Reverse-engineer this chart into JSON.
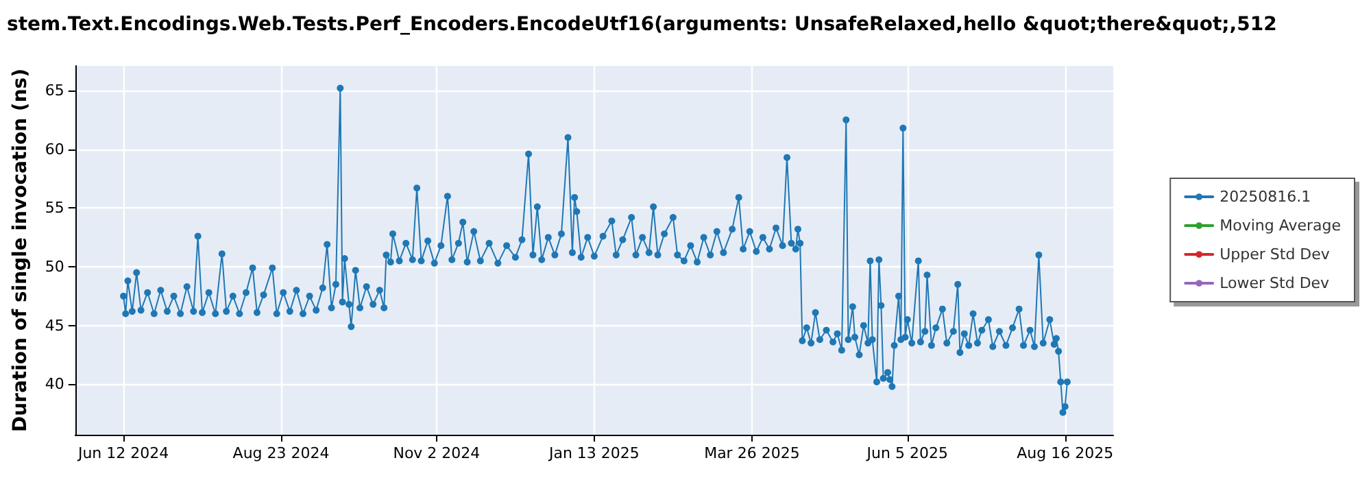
{
  "chart_data": {
    "type": "line",
    "title": "stem.Text.Encodings.Web.Tests.Perf_Encoders.EncodeUtf16(arguments: UnsafeRelaxed,hello &quot;there&quot;,512",
    "ylabel": "Duration of single invocation (ns)",
    "xlim": [
      "2024-05-21",
      "2025-09-07"
    ],
    "xticks": [
      {
        "value": "2024-06-12",
        "label": "Jun 12 2024"
      },
      {
        "value": "2024-08-23",
        "label": "Aug 23 2024"
      },
      {
        "value": "2024-11-02",
        "label": "Nov 2 2024"
      },
      {
        "value": "2025-01-13",
        "label": "Jan 13 2025"
      },
      {
        "value": "2025-03-26",
        "label": "Mar 26 2025"
      },
      {
        "value": "2025-06-05",
        "label": "Jun 5 2025"
      },
      {
        "value": "2025-08-16",
        "label": "Aug 16 2025"
      }
    ],
    "ylim": [
      35.7,
      67.1
    ],
    "yticks": [
      40,
      45,
      50,
      55,
      60,
      65
    ],
    "grid": true,
    "legend": "right",
    "marker": "circle",
    "line_style": "solid",
    "series": [
      {
        "name": "20250816.1",
        "color": "#1f77b4",
        "x": [
          "2024-06-12",
          "2024-06-13",
          "2024-06-14",
          "2024-06-16",
          "2024-06-18",
          "2024-06-20",
          "2024-06-23",
          "2024-06-26",
          "2024-06-29",
          "2024-07-02",
          "2024-07-05",
          "2024-07-08",
          "2024-07-11",
          "2024-07-14",
          "2024-07-16",
          "2024-07-18",
          "2024-07-21",
          "2024-07-24",
          "2024-07-27",
          "2024-07-29",
          "2024-08-01",
          "2024-08-04",
          "2024-08-07",
          "2024-08-10",
          "2024-08-12",
          "2024-08-15",
          "2024-08-19",
          "2024-08-21",
          "2024-08-24",
          "2024-08-27",
          "2024-08-30",
          "2024-09-02",
          "2024-09-05",
          "2024-09-08",
          "2024-09-11",
          "2024-09-13",
          "2024-09-15",
          "2024-09-17",
          "2024-09-19",
          "2024-09-20",
          "2024-09-21",
          "2024-09-23",
          "2024-09-24",
          "2024-09-26",
          "2024-09-28",
          "2024-10-01",
          "2024-10-04",
          "2024-10-07",
          "2024-10-09",
          "2024-10-10",
          "2024-10-12",
          "2024-10-13",
          "2024-10-16",
          "2024-10-19",
          "2024-10-22",
          "2024-10-24",
          "2024-10-26",
          "2024-10-29",
          "2024-11-01",
          "2024-11-04",
          "2024-11-07",
          "2024-11-09",
          "2024-11-12",
          "2024-11-14",
          "2024-11-16",
          "2024-11-19",
          "2024-11-22",
          "2024-11-26",
          "2024-11-30",
          "2024-12-04",
          "2024-12-08",
          "2024-12-11",
          "2024-12-14",
          "2024-12-16",
          "2024-12-18",
          "2024-12-20",
          "2024-12-23",
          "2024-12-26",
          "2024-12-29",
          "2025-01-01",
          "2025-01-03",
          "2025-01-04",
          "2025-01-05",
          "2025-01-07",
          "2025-01-10",
          "2025-01-13",
          "2025-01-17",
          "2025-01-21",
          "2025-01-23",
          "2025-01-26",
          "2025-01-30",
          "2025-02-01",
          "2025-02-04",
          "2025-02-07",
          "2025-02-09",
          "2025-02-11",
          "2025-02-14",
          "2025-02-18",
          "2025-02-20",
          "2025-02-23",
          "2025-02-26",
          "2025-03-01",
          "2025-03-04",
          "2025-03-07",
          "2025-03-10",
          "2025-03-13",
          "2025-03-17",
          "2025-03-20",
          "2025-03-22",
          "2025-03-25",
          "2025-03-28",
          "2025-03-31",
          "2025-04-03",
          "2025-04-06",
          "2025-04-09",
          "2025-04-11",
          "2025-04-13",
          "2025-04-15",
          "2025-04-16",
          "2025-04-17",
          "2025-04-18",
          "2025-04-20",
          "2025-04-22",
          "2025-04-24",
          "2025-04-26",
          "2025-04-29",
          "2025-05-02",
          "2025-05-04",
          "2025-05-06",
          "2025-05-08",
          "2025-05-09",
          "2025-05-11",
          "2025-05-12",
          "2025-05-14",
          "2025-05-16",
          "2025-05-18",
          "2025-05-19",
          "2025-05-20",
          "2025-05-22",
          "2025-05-23",
          "2025-05-24",
          "2025-05-25",
          "2025-05-27",
          "2025-05-28",
          "2025-05-29",
          "2025-05-30",
          "2025-06-01",
          "2025-06-02",
          "2025-06-03",
          "2025-06-04",
          "2025-06-05",
          "2025-06-07",
          "2025-06-10",
          "2025-06-11",
          "2025-06-13",
          "2025-06-14",
          "2025-06-16",
          "2025-06-18",
          "2025-06-21",
          "2025-06-23",
          "2025-06-26",
          "2025-06-28",
          "2025-06-29",
          "2025-07-01",
          "2025-07-03",
          "2025-07-05",
          "2025-07-07",
          "2025-07-09",
          "2025-07-12",
          "2025-07-14",
          "2025-07-17",
          "2025-07-20",
          "2025-07-23",
          "2025-07-26",
          "2025-07-28",
          "2025-07-31",
          "2025-08-02",
          "2025-08-04",
          "2025-08-06",
          "2025-08-09",
          "2025-08-11",
          "2025-08-12",
          "2025-08-13",
          "2025-08-14",
          "2025-08-15",
          "2025-08-16",
          "2025-08-17"
        ],
        "values": [
          47.5,
          46.0,
          48.8,
          46.2,
          49.5,
          46.3,
          47.8,
          46.0,
          48.0,
          46.2,
          47.5,
          46.0,
          48.3,
          46.2,
          52.6,
          46.1,
          47.8,
          46.0,
          51.1,
          46.2,
          47.5,
          46.0,
          47.8,
          49.9,
          46.1,
          47.6,
          49.9,
          46.0,
          47.8,
          46.2,
          48.0,
          46.0,
          47.5,
          46.3,
          48.2,
          51.9,
          46.5,
          48.5,
          65.2,
          47.0,
          50.7,
          46.8,
          44.9,
          49.7,
          46.5,
          48.3,
          46.8,
          48.0,
          46.5,
          51.0,
          50.4,
          52.8,
          50.5,
          52.0,
          50.6,
          56.7,
          50.5,
          52.2,
          50.3,
          51.8,
          56.0,
          50.6,
          52.0,
          53.8,
          50.4,
          53.0,
          50.5,
          52.0,
          50.3,
          51.8,
          50.8,
          52.3,
          59.6,
          51.0,
          55.1,
          50.6,
          52.5,
          51.0,
          52.8,
          61.0,
          51.2,
          55.9,
          54.7,
          50.8,
          52.5,
          50.9,
          52.6,
          53.9,
          51.0,
          52.3,
          54.2,
          51.0,
          52.5,
          51.2,
          55.1,
          51.0,
          52.8,
          54.2,
          51.0,
          50.5,
          51.8,
          50.4,
          52.5,
          51.0,
          53.0,
          51.2,
          53.2,
          55.9,
          51.5,
          53.0,
          51.3,
          52.5,
          51.5,
          53.3,
          51.8,
          59.3,
          52.0,
          51.5,
          53.2,
          52.0,
          43.7,
          44.8,
          43.5,
          46.1,
          43.8,
          44.6,
          43.6,
          44.3,
          42.9,
          62.5,
          43.8,
          46.6,
          44.0,
          42.5,
          45.0,
          43.5,
          50.5,
          43.8,
          40.2,
          50.6,
          46.7,
          40.5,
          41.0,
          40.4,
          39.8,
          43.3,
          47.5,
          43.8,
          61.8,
          44.0,
          45.5,
          43.5,
          50.5,
          43.6,
          44.5,
          49.3,
          43.3,
          44.8,
          46.4,
          43.5,
          44.5,
          48.5,
          42.7,
          44.3,
          43.3,
          46.0,
          43.5,
          44.6,
          45.5,
          43.2,
          44.5,
          43.3,
          44.8,
          46.4,
          43.3,
          44.6,
          43.2,
          51.0,
          43.5,
          45.5,
          43.4,
          43.9,
          42.8,
          40.2,
          37.6,
          38.1,
          40.2
        ]
      },
      {
        "name": "Moving Average",
        "color": "#2ca02c"
      },
      {
        "name": "Upper Std Dev",
        "color": "#d62728"
      },
      {
        "name": "Lower Std Dev",
        "color": "#9467bd"
      }
    ]
  }
}
